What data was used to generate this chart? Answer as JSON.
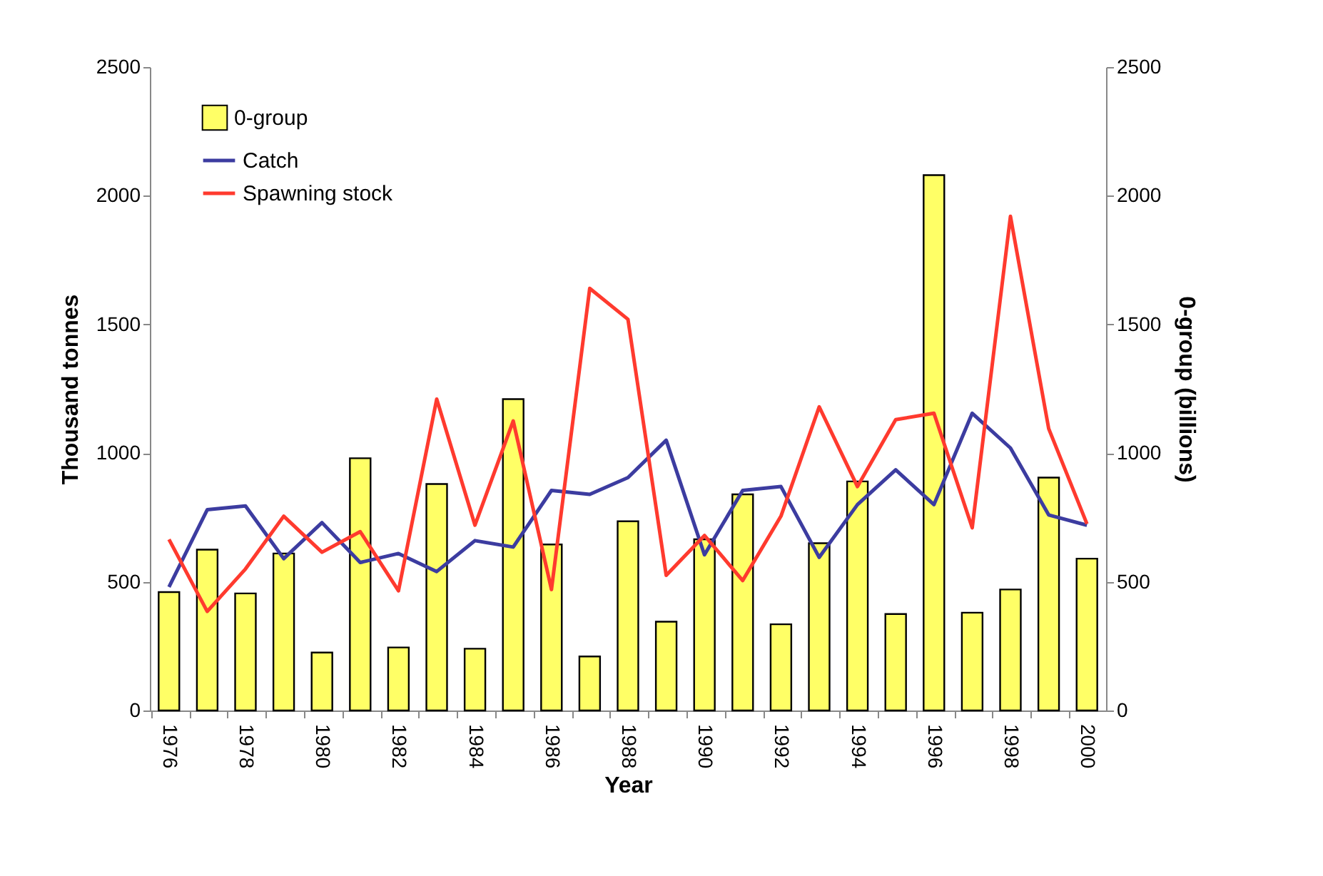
{
  "chart_data": {
    "type": "bar",
    "xlabel": "Year",
    "ylabel": "Thousand tonnes",
    "y2label": "0-group (billions)",
    "categories": [
      "1976",
      null,
      "1978",
      null,
      "1980",
      null,
      "1982",
      null,
      "1984",
      null,
      "1986",
      null,
      "1988",
      null,
      "1990",
      null,
      "1992",
      null,
      "1994",
      null,
      "1996",
      null,
      "1998",
      null,
      "2000"
    ],
    "series": [
      {
        "name": "0-group",
        "axis": "y2",
        "color": "#ffff66",
        "values": [
          460,
          625,
          455,
          610,
          225,
          980,
          245,
          880,
          240,
          1210,
          645,
          210,
          735,
          345,
          665,
          840,
          335,
          650,
          890,
          375,
          2080,
          380,
          470,
          905,
          590
        ]
      },
      {
        "name": "Catch",
        "type": "line",
        "color": "#3c3ca0",
        "values": [
          480,
          780,
          795,
          590,
          730,
          575,
          610,
          540,
          660,
          635,
          855,
          840,
          905,
          1050,
          605,
          855,
          870,
          595,
          800,
          935,
          800,
          1155,
          1020,
          760,
          720
        ]
      },
      {
        "name": "Spawning stock",
        "type": "line",
        "color": "#ff3a2e",
        "values": [
          665,
          385,
          550,
          755,
          615,
          695,
          465,
          1210,
          720,
          1125,
          470,
          1640,
          1520,
          525,
          680,
          505,
          755,
          1180,
          870,
          1130,
          1155,
          710,
          1920,
          1095,
          725
        ]
      }
    ],
    "ylim": [
      0,
      2500
    ],
    "yticks": [
      0,
      500,
      1000,
      1500,
      2000,
      2500
    ],
    "y2lim": [
      0,
      2500
    ],
    "y2ticks": [
      0,
      500,
      1000,
      1500,
      2000,
      2500
    ],
    "grid": false,
    "legend": "top left"
  }
}
